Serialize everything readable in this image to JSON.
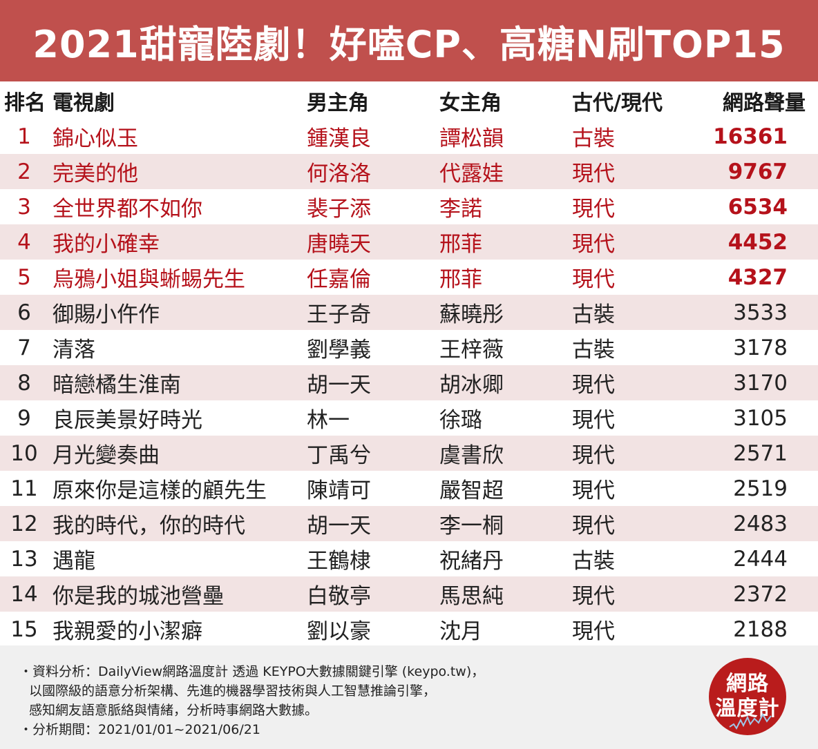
{
  "title": "2021甜寵陸劇！好嗑CP、高糖N刷TOP15",
  "header": {
    "rank": "排名",
    "drama": "電視劇",
    "actor": "男主角",
    "actress": "女主角",
    "era": "古代/現代",
    "volume": "網路聲量"
  },
  "rows": [
    {
      "rank": "1",
      "drama": "錦心似玉",
      "actor": "鍾漢良",
      "actress": "譚松韻",
      "era": "古裝",
      "volume": "16361"
    },
    {
      "rank": "2",
      "drama": "完美的他",
      "actor": "何洛洛",
      "actress": "代露娃",
      "era": "現代",
      "volume": "9767"
    },
    {
      "rank": "3",
      "drama": "全世界都不如你",
      "actor": "裴子添",
      "actress": "李諾",
      "era": "現代",
      "volume": "6534"
    },
    {
      "rank": "4",
      "drama": "我的小確幸",
      "actor": "唐曉天",
      "actress": "邢菲",
      "era": "現代",
      "volume": "4452"
    },
    {
      "rank": "5",
      "drama": "烏鴉小姐與蜥蜴先生",
      "actor": "任嘉倫",
      "actress": "邢菲",
      "era": "現代",
      "volume": "4327"
    },
    {
      "rank": "6",
      "drama": "御賜小仵作",
      "actor": "王子奇",
      "actress": "蘇曉彤",
      "era": "古裝",
      "volume": "3533"
    },
    {
      "rank": "7",
      "drama": "清落",
      "actor": "劉學義",
      "actress": "王梓薇",
      "era": "古裝",
      "volume": "3178"
    },
    {
      "rank": "8",
      "drama": "暗戀橘生淮南",
      "actor": "胡一天",
      "actress": "胡冰卿",
      "era": "現代",
      "volume": "3170"
    },
    {
      "rank": "9",
      "drama": "良辰美景好時光",
      "actor": "林一",
      "actress": "徐璐",
      "era": "現代",
      "volume": "3105"
    },
    {
      "rank": "10",
      "drama": "月光變奏曲",
      "actor": "丁禹兮",
      "actress": "虞書欣",
      "era": "現代",
      "volume": "2571"
    },
    {
      "rank": "11",
      "drama": "原來你是這樣的顧先生",
      "actor": "陳靖可",
      "actress": "嚴智超",
      "era": "現代",
      "volume": "2519"
    },
    {
      "rank": "12",
      "drama": "我的時代，你的時代",
      "actor": "胡一天",
      "actress": "李一桐",
      "era": "現代",
      "volume": "2483"
    },
    {
      "rank": "13",
      "drama": "遇龍",
      "actor": "王鶴棣",
      "actress": "祝緒丹",
      "era": "古裝",
      "volume": "2444"
    },
    {
      "rank": "14",
      "drama": "你是我的城池營壘",
      "actor": "白敬亭",
      "actress": "馬思純",
      "era": "現代",
      "volume": "2372"
    },
    {
      "rank": "15",
      "drama": "我親愛的小潔癖",
      "actor": "劉以豪",
      "actress": "沈月",
      "era": "現代",
      "volume": "2188"
    }
  ],
  "footer": {
    "note1": "・資料分析：DailyView網路溫度計 透過 KEYPO大數據關鍵引擎 (keypo.tw)，",
    "note2": "以國際級的語意分析架構、先進的機器學習技術與人工智慧推論引擎，",
    "note3": "感知網友語意脈絡與情緒，分析時事網路大數據。",
    "note4": "・分析期間：2021/01/01~2021/06/21",
    "logo_line1": "網路",
    "logo_line2": "溫度計"
  },
  "colors": {
    "banner": "#c0504d",
    "top5_text": "#b5121b",
    "row_shade": "#f2e3e3",
    "logo": "#b91c1c"
  }
}
